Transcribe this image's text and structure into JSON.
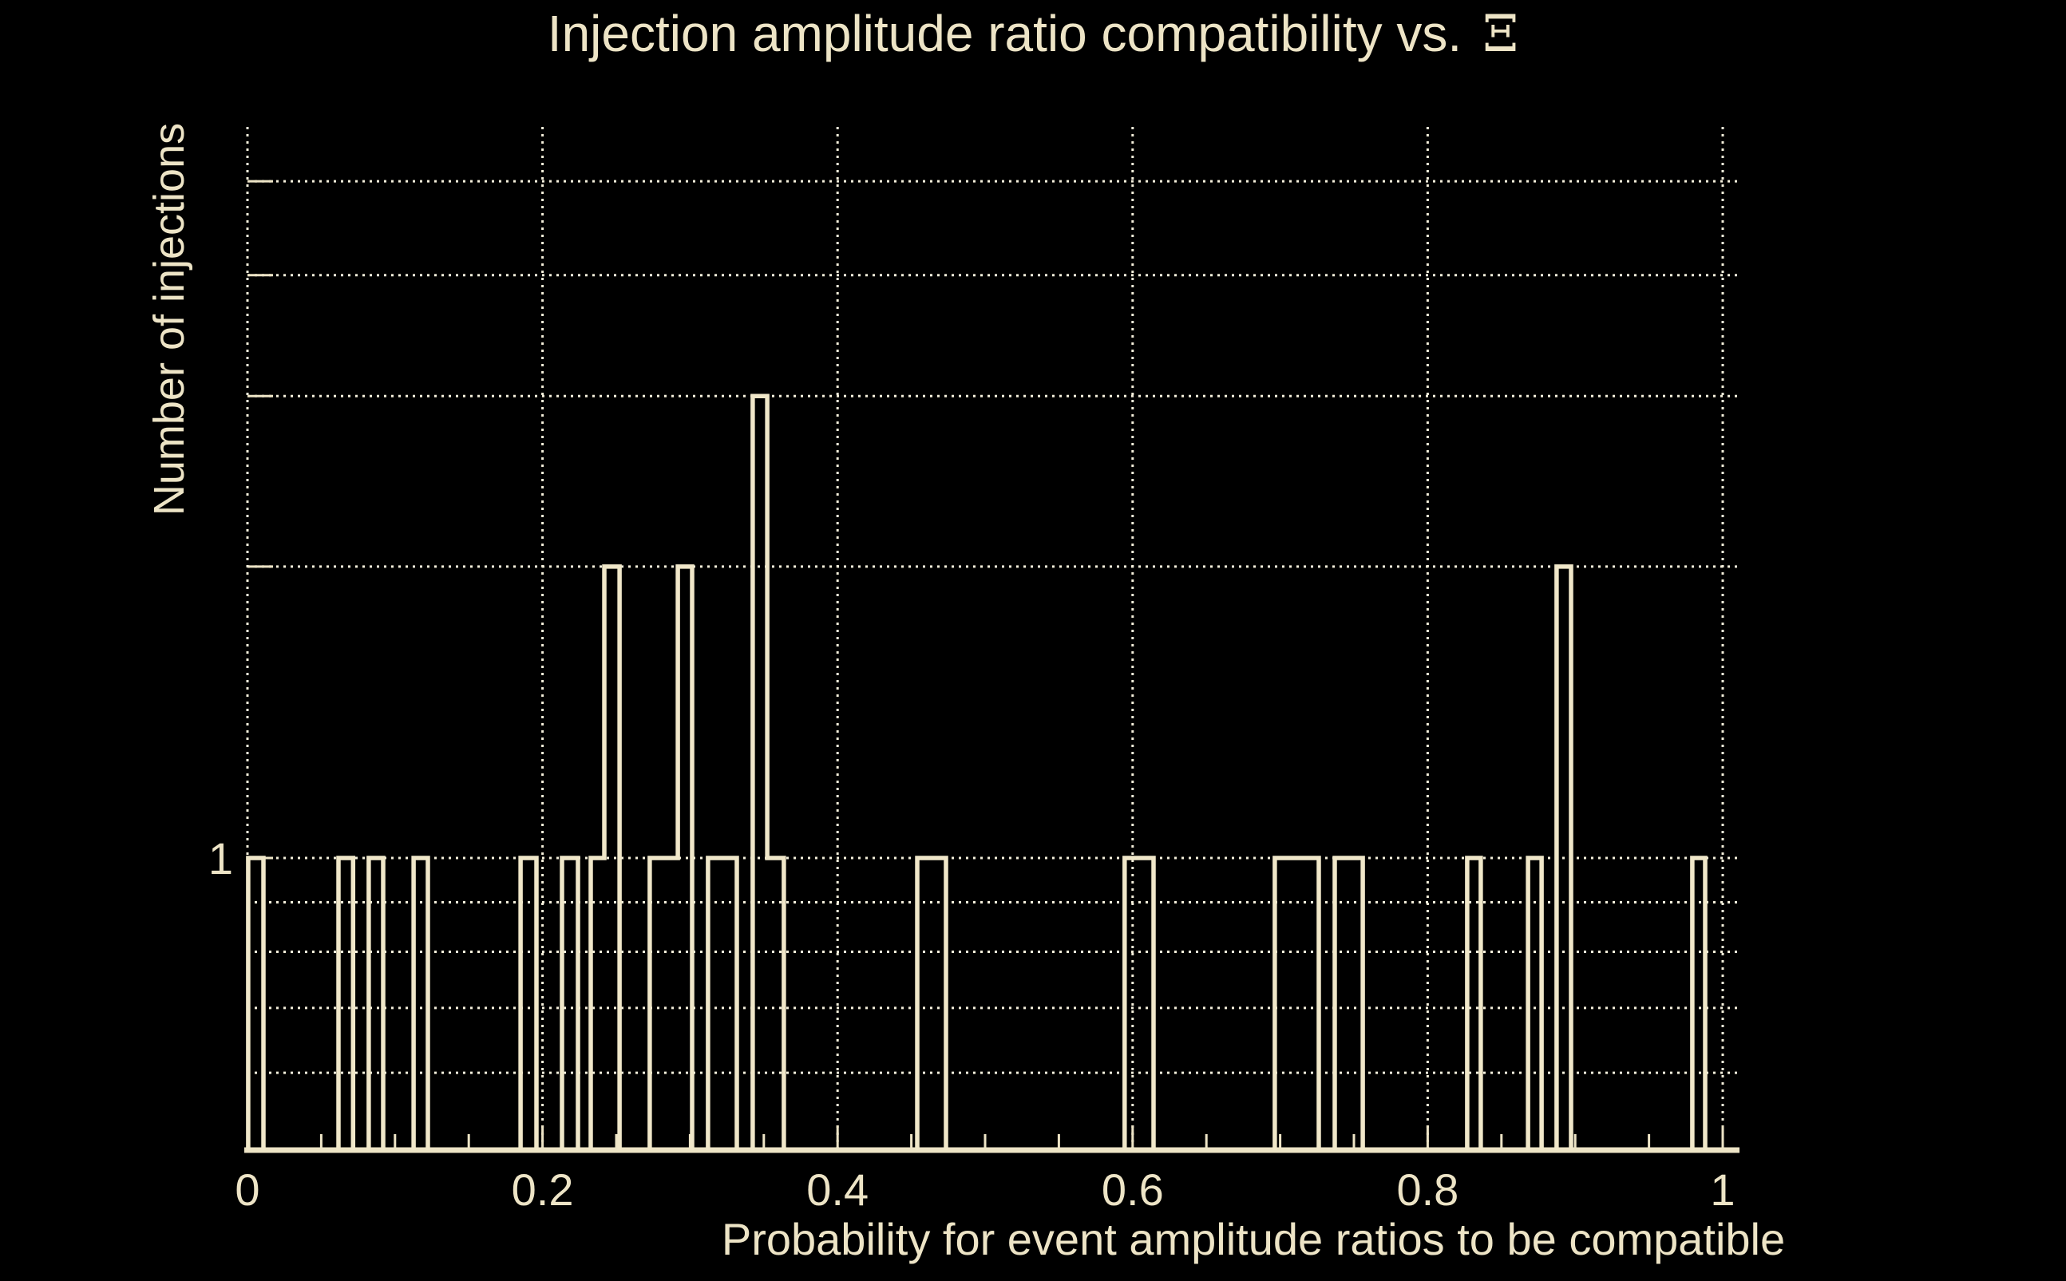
{
  "page": {
    "background": "#000000"
  },
  "title": {
    "main": "Injection amplitude ratio compatibility vs.",
    "symbol": "Ξ"
  },
  "axes": {
    "xlabel": "Probability for event amplitude ratios to be compatible",
    "ylabel": "Number of injections",
    "y_tick_label": "1"
  },
  "colors": {
    "background": "#000000",
    "foreground": "#EDE4C6",
    "bar_stroke": "#F0E7C9",
    "grid_dots": "#F5F0DC"
  },
  "chart_data": {
    "type": "bar",
    "subtype": "step-histogram",
    "title": "Injection amplitude ratio compatibility vs. Ξ",
    "xlabel": "Probability for event amplitude ratios to be compatible",
    "ylabel": "Number of injections",
    "x_scale": "linear",
    "y_scale": "log",
    "xlim": [
      0,
      1.008
    ],
    "ylim": [
      0.5,
      5.75
    ],
    "grid": "dotted",
    "legend": "none",
    "bin_width": 0.0103,
    "x_major_ticks": [
      {
        "x": 0.0,
        "label": "0"
      },
      {
        "x": 0.2,
        "label": "0.2"
      },
      {
        "x": 0.4,
        "label": "0.4"
      },
      {
        "x": 0.6,
        "label": "0.6"
      },
      {
        "x": 0.8,
        "label": "0.8"
      },
      {
        "x": 1.0,
        "label": "1"
      }
    ],
    "x_minor_tick_step": 0.05,
    "x_gridlines": [
      0.2,
      0.4,
      0.6,
      0.8,
      1.0
    ],
    "y_major_gridlines": [
      1,
      2,
      3,
      4,
      5
    ],
    "y_minor_gridlines": [
      0.6,
      0.7,
      0.8,
      0.9
    ],
    "y_labeled_ticks": [
      1
    ],
    "bars": [
      {
        "x1": 0.0005,
        "x2": 0.0108,
        "count": 1
      },
      {
        "x1": 0.0617,
        "x2": 0.0716,
        "count": 1
      },
      {
        "x1": 0.0822,
        "x2": 0.092,
        "count": 1
      },
      {
        "x1": 0.1126,
        "x2": 0.1223,
        "count": 1
      },
      {
        "x1": 0.1851,
        "x2": 0.1959,
        "count": 1
      },
      {
        "x1": 0.2132,
        "x2": 0.224,
        "count": 1
      },
      {
        "x1": 0.2327,
        "x2": 0.2419,
        "count": 1
      },
      {
        "x1": 0.2419,
        "x2": 0.2522,
        "count": 2
      },
      {
        "x1": 0.2727,
        "x2": 0.2917,
        "count": 1
      },
      {
        "x1": 0.2917,
        "x2": 0.3014,
        "count": 2
      },
      {
        "x1": 0.3122,
        "x2": 0.3317,
        "count": 1
      },
      {
        "x1": 0.3425,
        "x2": 0.3523,
        "count": 3
      },
      {
        "x1": 0.3523,
        "x2": 0.3636,
        "count": 1
      },
      {
        "x1": 0.454,
        "x2": 0.4735,
        "count": 1
      },
      {
        "x1": 0.5946,
        "x2": 0.6142,
        "count": 1
      },
      {
        "x1": 0.6964,
        "x2": 0.7262,
        "count": 1
      },
      {
        "x1": 0.737,
        "x2": 0.756,
        "count": 1
      },
      {
        "x1": 0.8268,
        "x2": 0.836,
        "count": 1
      },
      {
        "x1": 0.868,
        "x2": 0.8772,
        "count": 1
      },
      {
        "x1": 0.8874,
        "x2": 0.8972,
        "count": 2
      },
      {
        "x1": 0.9794,
        "x2": 0.9881,
        "count": 1
      }
    ]
  }
}
